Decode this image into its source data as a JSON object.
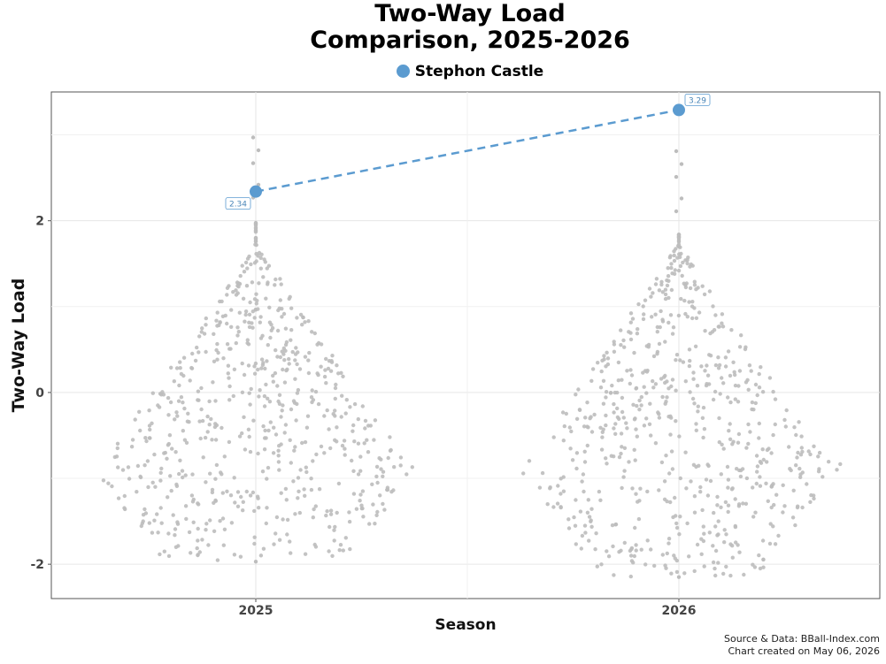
{
  "chart_data": {
    "type": "scatter",
    "title": [
      "Two-Way Load",
      "Comparison, 2025-2026"
    ],
    "xlabel": "Season",
    "ylabel": "Two-Way Load",
    "categories": [
      "2025",
      "2026"
    ],
    "ylim": [
      -2.4,
      3.5
    ],
    "yticks": [
      -2,
      0,
      2
    ],
    "ytick_labels": [
      "-2",
      "0",
      "2"
    ],
    "grid": true,
    "legend": "top-center",
    "background_distribution": {
      "description": "league-wide player values per season (swarm)",
      "color": "#bdbdbd",
      "2025": {
        "min": -1.97,
        "max": 2.97,
        "bulk_center": -0.8
      },
      "2026": {
        "min": -2.15,
        "max": 2.81,
        "bulk_center": -0.8
      }
    },
    "series": [
      {
        "name": "Stephon Castle",
        "color": "#5b9bd0",
        "style": "dashed",
        "x": [
          "2025",
          "2026"
        ],
        "values": [
          2.34,
          3.29
        ],
        "labels": [
          "2.34",
          "3.29"
        ]
      }
    ],
    "source": "Source & Data: BBall-Index.com",
    "created": "Chart created on May 06, 2026"
  }
}
